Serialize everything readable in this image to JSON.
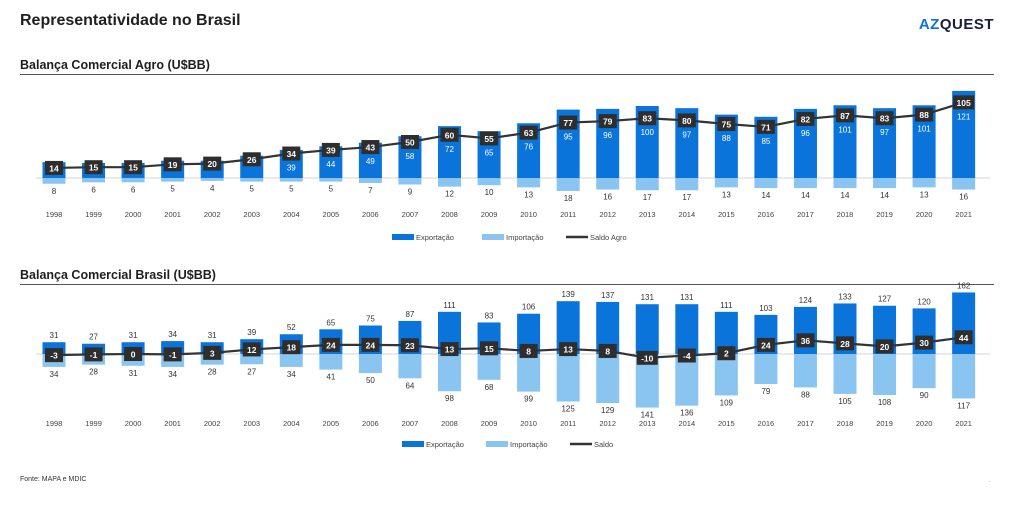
{
  "title": "Representatividade no Brasil",
  "logo": {
    "prefix": "AZ",
    "suffix": "QUEST"
  },
  "source": "Fonte: MAPA e MDIC",
  "footnote_mark": ".",
  "colors": {
    "export": "#0a74da",
    "import": "#8ac4f0",
    "balance": "#333333",
    "label_box": "#2e2e2e"
  },
  "chart_data": [
    {
      "type": "bar",
      "title": "Balança Comercial Agro (U$BB)",
      "categories": [
        "1998",
        "1999",
        "2000",
        "2001",
        "2002",
        "2003",
        "2004",
        "2005",
        "2006",
        "2007",
        "2008",
        "2009",
        "2010",
        "2011",
        "2012",
        "2013",
        "2014",
        "2015",
        "2016",
        "2017",
        "2018",
        "2019",
        "2020",
        "2021"
      ],
      "series": [
        {
          "name": "Exportação",
          "kind": "bar",
          "values": [
            22,
            21,
            21,
            24,
            24,
            31,
            39,
            44,
            49,
            58,
            72,
            65,
            76,
            95,
            96,
            100,
            97,
            88,
            85,
            96,
            101,
            97,
            101,
            121
          ]
        },
        {
          "name": "Importação",
          "kind": "bar-negative",
          "values": [
            8,
            6,
            6,
            5,
            4,
            5,
            5,
            5,
            7,
            9,
            12,
            10,
            13,
            18,
            16,
            17,
            17,
            13,
            14,
            14,
            14,
            14,
            13,
            16
          ]
        },
        {
          "name": "Saldo Agro",
          "kind": "line",
          "values": [
            14,
            15,
            15,
            19,
            20,
            26,
            34,
            39,
            43,
            50,
            60,
            55,
            63,
            77,
            79,
            83,
            80,
            75,
            71,
            82,
            87,
            83,
            88,
            105
          ]
        }
      ],
      "legend": [
        "Exportação",
        "Importação",
        "Saldo Agro"
      ],
      "legend_position": "bottom"
    },
    {
      "type": "bar",
      "title": "Balança Comercial Brasil (U$BB)",
      "categories": [
        "1998",
        "1999",
        "2000",
        "2001",
        "2002",
        "2003",
        "2004",
        "2005",
        "2006",
        "2007",
        "2008",
        "2009",
        "2010",
        "2011",
        "2012",
        "2013",
        "2014",
        "2015",
        "2016",
        "2017",
        "2018",
        "2019",
        "2020",
        "2021"
      ],
      "series": [
        {
          "name": "Exportação",
          "kind": "bar",
          "values": [
            31,
            27,
            31,
            34,
            31,
            39,
            52,
            65,
            75,
            87,
            111,
            83,
            106,
            139,
            137,
            131,
            131,
            111,
            103,
            124,
            133,
            127,
            120,
            162
          ]
        },
        {
          "name": "Importação",
          "kind": "bar-negative",
          "values": [
            34,
            28,
            31,
            34,
            28,
            27,
            34,
            41,
            50,
            64,
            98,
            68,
            99,
            125,
            129,
            141,
            136,
            109,
            79,
            88,
            105,
            108,
            90,
            117
          ]
        },
        {
          "name": "Saldo",
          "kind": "line",
          "values": [
            -3,
            -1,
            0,
            -1,
            3,
            12,
            18,
            24,
            24,
            23,
            13,
            15,
            8,
            13,
            8,
            -10,
            -4,
            2,
            24,
            36,
            28,
            20,
            30,
            44
          ]
        }
      ],
      "legend": [
        "Exportação",
        "Importação",
        "Saldo"
      ],
      "legend_position": "bottom"
    }
  ]
}
